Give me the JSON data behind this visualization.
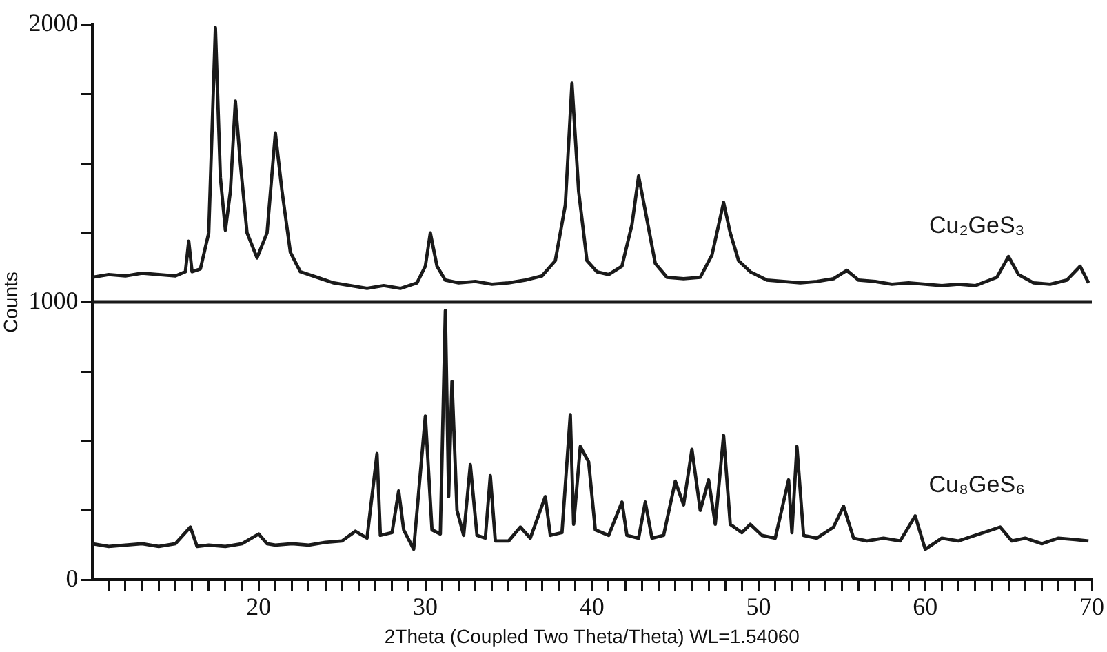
{
  "chart_data": {
    "type": "line",
    "xlabel": "2Theta (Coupled Two Theta/Theta) WL=1.54060",
    "ylabel": "Counts",
    "xlim": [
      10,
      70
    ],
    "xticks": [
      {
        "value": 11,
        "label": null
      },
      {
        "value": 12,
        "label": null
      },
      {
        "value": 13,
        "label": null
      },
      {
        "value": 14,
        "label": null
      },
      {
        "value": 15,
        "label": null
      },
      {
        "value": 16,
        "label": null
      },
      {
        "value": 17,
        "label": null
      },
      {
        "value": 18,
        "label": null
      },
      {
        "value": 19,
        "label": null
      },
      20,
      {
        "value": 21,
        "label": null
      },
      {
        "value": 22,
        "label": null
      },
      {
        "value": 23,
        "label": null
      },
      {
        "value": 24,
        "label": null
      },
      {
        "value": 25,
        "label": null
      },
      {
        "value": 26,
        "label": null
      },
      {
        "value": 27,
        "label": null
      },
      {
        "value": 28,
        "label": null
      },
      {
        "value": 29,
        "label": null
      },
      30,
      {
        "value": 31,
        "label": null
      },
      {
        "value": 32,
        "label": null
      },
      {
        "value": 33,
        "label": null
      },
      {
        "value": 34,
        "label": null
      },
      {
        "value": 35,
        "label": null
      },
      {
        "value": 36,
        "label": null
      },
      {
        "value": 37,
        "label": null
      },
      {
        "value": 38,
        "label": null
      },
      {
        "value": 39,
        "label": null
      },
      40,
      {
        "value": 41,
        "label": null
      },
      {
        "value": 42,
        "label": null
      },
      {
        "value": 43,
        "label": null
      },
      {
        "value": 44,
        "label": null
      },
      {
        "value": 45,
        "label": null
      },
      {
        "value": 46,
        "label": null
      },
      {
        "value": 47,
        "label": null
      },
      {
        "value": 48,
        "label": null
      },
      {
        "value": 49,
        "label": null
      },
      50,
      {
        "value": 51,
        "label": null
      },
      {
        "value": 52,
        "label": null
      },
      {
        "value": 53,
        "label": null
      },
      {
        "value": 54,
        "label": null
      },
      {
        "value": 55,
        "label": null
      },
      {
        "value": 56,
        "label": null
      },
      {
        "value": 57,
        "label": null
      },
      {
        "value": 58,
        "label": null
      },
      {
        "value": 59,
        "label": null
      },
      60,
      {
        "value": 61,
        "label": null
      },
      {
        "value": 62,
        "label": null
      },
      {
        "value": 63,
        "label": null
      },
      {
        "value": 64,
        "label": null
      },
      {
        "value": 65,
        "label": null
      },
      {
        "value": 66,
        "label": null
      },
      {
        "value": 67,
        "label": null
      },
      {
        "value": 68,
        "label": null
      },
      {
        "value": 69,
        "label": null
      },
      70
    ],
    "ylim": [
      0,
      2000
    ],
    "yticks": [
      0,
      {
        "value": 250,
        "label": null
      },
      {
        "value": 500,
        "label": null
      },
      {
        "value": 750,
        "label": null
      },
      1000,
      {
        "value": 1250,
        "label": null
      },
      {
        "value": 1500,
        "label": null
      },
      {
        "value": 1750,
        "label": null
      },
      2000
    ],
    "grid": false,
    "legend": false,
    "marker": "none",
    "line_style": "solid",
    "ref_lines": [
      {
        "axis": "y",
        "value": 1000,
        "label": null,
        "color": "#1a1a1a"
      }
    ],
    "series": [
      {
        "name": "Cu₂GeS₃",
        "color": "#1a1a1a",
        "x": [
          10,
          11,
          12,
          13,
          14,
          15,
          15.6,
          15.8,
          16.0,
          16.5,
          17.0,
          17.4,
          17.7,
          18.0,
          18.3,
          18.6,
          18.9,
          19.3,
          19.9,
          20.5,
          21.0,
          21.4,
          21.9,
          22.5,
          23.5,
          24.5,
          25.5,
          26.5,
          27.5,
          28.5,
          29.5,
          30.0,
          30.3,
          30.7,
          31.2,
          32,
          33,
          34,
          35,
          36,
          37,
          37.8,
          38.4,
          38.8,
          39.2,
          39.7,
          40.3,
          41,
          41.8,
          42.4,
          42.8,
          43.2,
          43.8,
          44.5,
          45.5,
          46.5,
          47.2,
          47.9,
          48.3,
          48.8,
          49.5,
          50.5,
          51.5,
          52.5,
          53.5,
          54.5,
          55.3,
          56,
          57,
          58,
          59,
          60,
          61,
          62,
          63,
          64.3,
          65.0,
          65.6,
          66.5,
          67.5,
          68.5,
          69.3,
          69.8
        ],
        "values": [
          1090,
          1100,
          1095,
          1105,
          1100,
          1095,
          1110,
          1220,
          1110,
          1120,
          1250,
          1990,
          1450,
          1260,
          1400,
          1725,
          1500,
          1250,
          1160,
          1250,
          1610,
          1400,
          1180,
          1110,
          1090,
          1070,
          1060,
          1050,
          1060,
          1050,
          1070,
          1130,
          1250,
          1130,
          1080,
          1070,
          1075,
          1065,
          1070,
          1080,
          1095,
          1150,
          1350,
          1790,
          1400,
          1150,
          1110,
          1100,
          1130,
          1280,
          1455,
          1330,
          1140,
          1090,
          1085,
          1090,
          1170,
          1360,
          1250,
          1150,
          1110,
          1080,
          1075,
          1070,
          1075,
          1085,
          1115,
          1080,
          1075,
          1065,
          1070,
          1065,
          1060,
          1065,
          1060,
          1090,
          1165,
          1100,
          1070,
          1065,
          1080,
          1130,
          1070
        ]
      },
      {
        "name": "Cu₈GeS₆",
        "color": "#1a1a1a",
        "x": [
          10,
          11,
          12,
          13,
          14,
          15,
          15.9,
          16.3,
          17,
          18,
          19,
          20,
          20.5,
          21,
          22,
          23,
          24,
          25,
          25.8,
          26.5,
          27.1,
          27.3,
          28,
          28.4,
          28.7,
          29.3,
          30.0,
          30.4,
          30.9,
          31.2,
          31.4,
          31.6,
          31.9,
          32.3,
          32.7,
          33.1,
          33.6,
          33.9,
          34.2,
          35,
          35.7,
          36.3,
          37.2,
          37.5,
          38.2,
          38.7,
          38.9,
          39.3,
          39.8,
          40.2,
          41,
          41.8,
          42.1,
          42.8,
          43.2,
          43.6,
          44.3,
          45.0,
          45.5,
          46.0,
          46.5,
          47.0,
          47.4,
          47.9,
          48.3,
          49,
          49.5,
          50.2,
          51,
          51.8,
          52.0,
          52.3,
          52.7,
          53.5,
          54.5,
          55.1,
          55.7,
          56.5,
          57.5,
          58.5,
          59.4,
          60,
          61,
          62,
          63,
          64.5,
          65.2,
          66,
          67,
          68,
          69,
          69.8
        ],
        "values": [
          130,
          120,
          125,
          130,
          120,
          130,
          190,
          120,
          125,
          120,
          130,
          165,
          130,
          125,
          130,
          125,
          135,
          140,
          175,
          150,
          455,
          160,
          170,
          320,
          180,
          110,
          590,
          180,
          165,
          970,
          300,
          715,
          250,
          160,
          415,
          160,
          150,
          375,
          140,
          140,
          190,
          150,
          300,
          160,
          170,
          595,
          200,
          480,
          425,
          180,
          160,
          280,
          160,
          150,
          280,
          150,
          160,
          355,
          270,
          470,
          250,
          360,
          200,
          520,
          200,
          170,
          200,
          160,
          150,
          360,
          170,
          480,
          160,
          150,
          190,
          265,
          150,
          140,
          150,
          140,
          230,
          110,
          150,
          140,
          160,
          190,
          140,
          150,
          130,
          150,
          145,
          140
        ]
      }
    ]
  }
}
